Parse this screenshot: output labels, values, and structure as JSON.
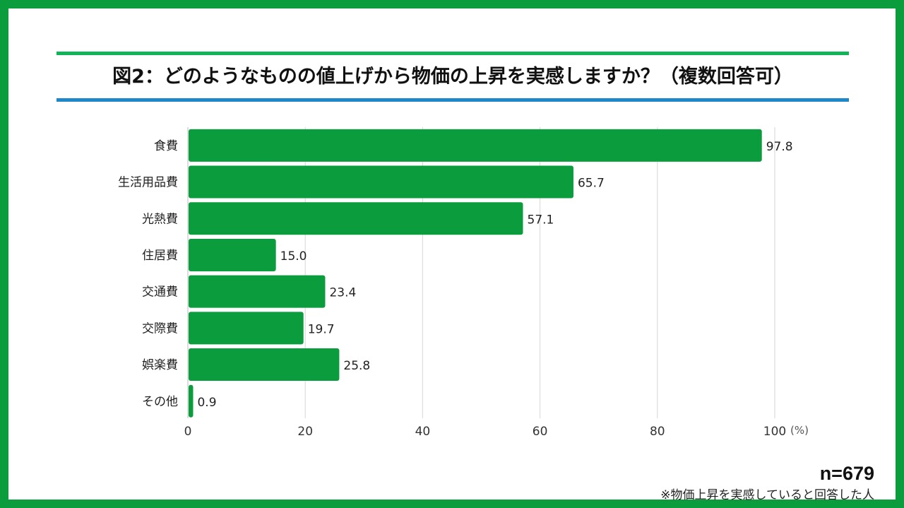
{
  "chart_data": {
    "type": "bar",
    "orientation": "horizontal",
    "title": "図2：どのようなものの値上げから物価の上昇を実感しますか？（複数回答可）",
    "categories": [
      "食費",
      "生活用品費",
      "光熱費",
      "住居費",
      "交通費",
      "交際費",
      "娯楽費",
      "その他"
    ],
    "values": [
      97.8,
      65.7,
      57.1,
      15.0,
      23.4,
      19.7,
      25.8,
      0.9
    ],
    "xlim": [
      0,
      100
    ],
    "xticks": [
      0,
      20,
      40,
      60,
      80,
      100
    ],
    "xunit": "(%)",
    "grid": true,
    "bar_color": "#0b9c3d",
    "data_labels": true
  },
  "footer": {
    "sample_size": "n=679",
    "note": "※物価上昇を実感していると回答した人"
  },
  "colors": {
    "frame": "#0b9c3d",
    "title_rule_top": "#12b45a",
    "title_rule_bottom": "#1e87c9"
  }
}
